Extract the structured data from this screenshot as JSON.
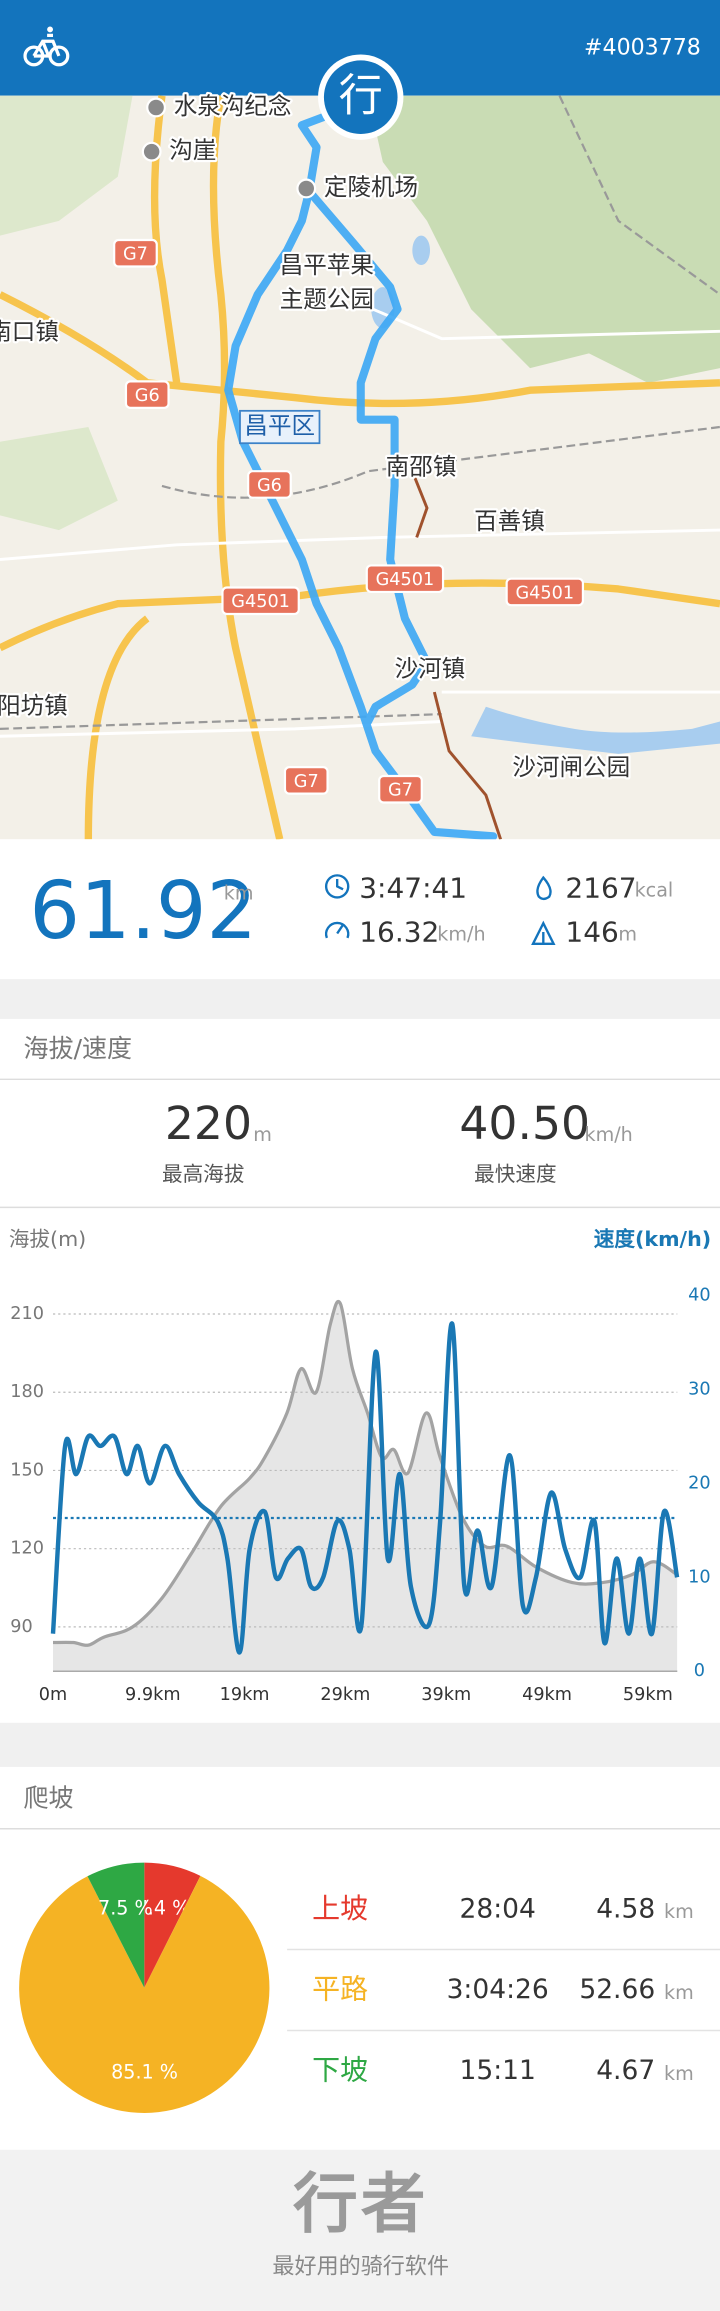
{
  "header": {
    "id": "#4003778"
  },
  "map": {
    "marker": "行",
    "labels": [
      "水泉沟纪念",
      "沟崖",
      "定陵机场",
      "昌平苹果",
      "主题公园",
      "南口镇",
      "G7",
      "G6",
      "昌平区",
      "G6",
      "南邵镇",
      "百善镇",
      "G4501",
      "G4501",
      "G4501",
      "沙河镇",
      "阳坊镇",
      "沙河闸公园",
      "G7",
      "G7"
    ]
  },
  "summary": {
    "distance": 61.92,
    "distance_unit": "km",
    "duration": "3:47:41",
    "calories": 2167,
    "calories_unit": "kcal",
    "avg_speed": 16.32,
    "avg_speed_unit": "km/h",
    "climb": 146,
    "climb_unit": "m"
  },
  "elevation_speed": {
    "title": "海拔/速度",
    "max_elevation": "220",
    "max_elevation_unit": "m",
    "max_elevation_label": "最高海拔",
    "max_speed": "40.50",
    "max_speed_unit": "km/h",
    "max_speed_label": "最快速度"
  },
  "chart_data": [
    {
      "type": "line",
      "y_label": "海拔(m)",
      "y2_label": "速度(km/h)",
      "xlim": [
        0,
        61.92
      ],
      "xticks": [
        {
          "value": 0,
          "label": "0m"
        },
        {
          "value": 9.9,
          "label": "9.9km"
        },
        {
          "value": 19,
          "label": "19km"
        },
        {
          "value": 29,
          "label": "29km"
        },
        {
          "value": 39,
          "label": "39km"
        },
        {
          "value": 49,
          "label": "49km"
        },
        {
          "value": 59,
          "label": "59km"
        }
      ],
      "ylim": [
        73,
        217
      ],
      "yticks": [
        90,
        120,
        150,
        180,
        210
      ],
      "y2lim": [
        0,
        40
      ],
      "y2ticks": [
        0,
        10,
        20,
        30,
        40
      ],
      "grid": true,
      "series": [
        {
          "color": "#a3a3a3",
          "fill": "#e6e6e6",
          "x": [
            0,
            2.0,
            3.5,
            5.0,
            7.9,
            10.8,
            13.7,
            16.6,
            19.5,
            21.0,
            23.2,
            24.6,
            26.1,
            27.5,
            28.5,
            29.7,
            31.2,
            32.6,
            33.8,
            35.2,
            37.0,
            38.4,
            40.6,
            42.8,
            45.0,
            47.9,
            51.5,
            54.5,
            57.4,
            59.6,
            61.9
          ],
          "values": [
            84,
            84,
            83,
            86,
            90,
            101,
            118,
            136,
            147,
            155,
            172,
            189,
            180,
            206,
            214,
            189,
            172,
            155,
            158,
            149,
            172,
            155,
            132,
            121,
            121,
            113,
            107,
            107,
            110,
            115,
            110
          ]
        },
        {
          "color": "#1a78b4",
          "axis": "y2",
          "x": [
            0,
            1.2,
            2.3,
            3.5,
            4.7,
            6.1,
            7.3,
            8.4,
            9.6,
            11.1,
            12.5,
            14.4,
            16.3,
            17.3,
            18.5,
            19.5,
            21.0,
            22.1,
            23.3,
            24.6,
            25.6,
            26.8,
            28.2,
            29.4,
            30.6,
            32.0,
            33.2,
            34.4,
            35.5,
            37.3,
            38.4,
            39.6,
            40.8,
            42.1,
            43.5,
            45.3,
            46.6,
            47.9,
            49.4,
            50.8,
            52.3,
            53.7,
            54.7,
            55.9,
            57.1,
            58.2,
            59.4,
            60.6,
            61.9
          ],
          "values": [
            4,
            24,
            21,
            25,
            24,
            25,
            21,
            24,
            20,
            24,
            21,
            18,
            16,
            12,
            2,
            13,
            17,
            10,
            12,
            13,
            9,
            10,
            16,
            13,
            5,
            34,
            12,
            21,
            9,
            5,
            16,
            37,
            9,
            15,
            9,
            23,
            7,
            10,
            19,
            13,
            10,
            16,
            3,
            12,
            4,
            12,
            4,
            17,
            10
          ]
        }
      ]
    },
    {
      "type": "pie",
      "categories": [
        "上坡",
        "平路",
        "下坡"
      ],
      "values": [
        7.4,
        85.1,
        7.5
      ],
      "value_labels": [
        "7.4 %",
        "85.1 %",
        "7.5 %"
      ],
      "colors": [
        "#e5392d",
        "#f5b324",
        "#2ea844"
      ]
    }
  ],
  "climb": {
    "title": "爬坡",
    "rows": [
      [
        "28:04",
        "4.58",
        "km"
      ],
      [
        "3:04:26",
        "52.66",
        "km"
      ],
      [
        "15:11",
        "4.67",
        "km"
      ]
    ]
  },
  "footer": {
    "logo": "行者",
    "slogan": "最好用的骑行软件"
  }
}
